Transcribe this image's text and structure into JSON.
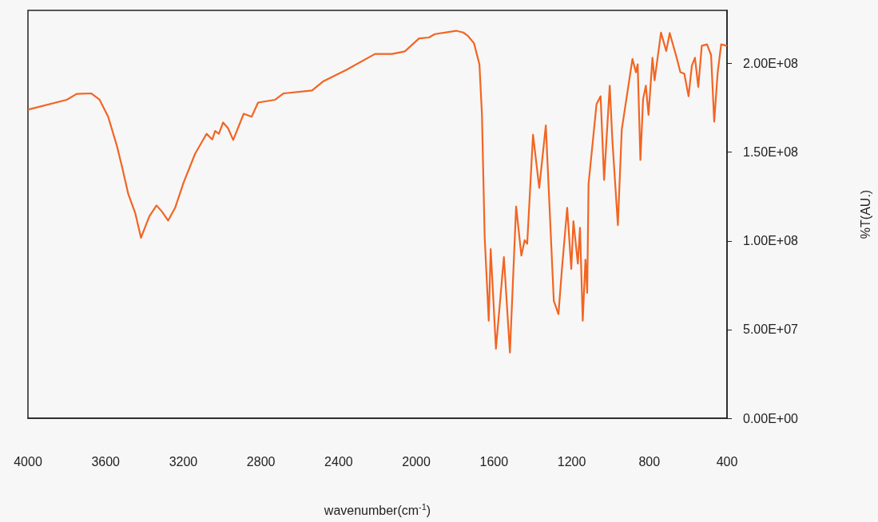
{
  "chart_data": {
    "type": "line",
    "xlabel": "wavenumber(cm$^{-1}$)",
    "ylabel": "%T(AU.)",
    "x": [
      4000,
      3800,
      3749,
      3675,
      3631,
      3587,
      3543,
      3514,
      3484,
      3447,
      3418,
      3375,
      3338,
      3309,
      3278,
      3242,
      3198,
      3139,
      3080,
      3051,
      3036,
      3017,
      2995,
      2970,
      2943,
      2889,
      2848,
      2815,
      2727,
      2683,
      2537,
      2478,
      2360,
      2213,
      2125,
      2059,
      1986,
      1935,
      1905,
      1795,
      1758,
      1736,
      1703,
      1675,
      1662,
      1648,
      1627,
      1617,
      1590,
      1549,
      1518,
      1486,
      1459,
      1442,
      1429,
      1399,
      1367,
      1333,
      1292,
      1268,
      1250,
      1223,
      1202,
      1191,
      1168,
      1157,
      1143,
      1129,
      1120,
      1113,
      1072,
      1051,
      1033,
      1004,
      990,
      962,
      942,
      887,
      869,
      860,
      846,
      832,
      818,
      804,
      784,
      773,
      740,
      713,
      695,
      661,
      640,
      620,
      598,
      581,
      565,
      548,
      530,
      503,
      482,
      466,
      448,
      430,
      400
    ],
    "series": [
      {
        "color": "#f26522",
        "values": [
          174000000.0,
          179600000.0,
          182900000.0,
          183200000.0,
          179600000.0,
          170000000.0,
          154000000.0,
          141100000.0,
          126700000.0,
          115500000.0,
          101800000.0,
          113800000.0,
          120000000.0,
          116400000.0,
          111500000.0,
          118700000.0,
          133100000.0,
          149200000.0,
          160400000.0,
          157200000.0,
          162000000.0,
          160400000.0,
          166800000.0,
          163600000.0,
          156900000.0,
          171700000.0,
          170000000.0,
          178000000.0,
          179600000.0,
          183200000.0,
          184800000.0,
          190100000.0,
          196500000.0,
          205400000.0,
          205400000.0,
          206900000.0,
          214200000.0,
          214700000.0,
          216600000.0,
          218500000.0,
          217500000.0,
          215800000.0,
          211500000.0,
          199600000.0,
          171200000.0,
          102200000.0,
          55000000.0,
          95400000.0,
          39200000.0,
          90900000.0,
          37000000.0,
          119400000.0,
          91700000.0,
          100400000.0,
          98400000.0,
          159900000.0,
          129900000.0,
          165100000.0,
          66200000.0,
          58700000.0,
          84200000.0,
          118700000.0,
          84200000.0,
          111100000.0,
          87200000.0,
          107400000.0,
          55000000.0,
          89400000.0,
          70700000.0,
          132100000.0,
          177100000.0,
          181600000.0,
          134400000.0,
          187500000.0,
          156100000.0,
          108900000.0,
          162800000.0,
          202600000.0,
          195100000.0,
          199600000.0,
          145600000.0,
          180100000.0,
          187500000.0,
          171100000.0,
          203300000.0,
          190600000.0,
          217500000.0,
          207100000.0,
          217200000.0,
          204000000.0,
          195100000.0,
          194300000.0,
          181600000.0,
          198800000.0,
          203300000.0,
          186800000.0,
          210000000.0,
          210800000.0,
          204800000.0,
          167300000.0,
          195100000.0,
          210800000.0,
          210000000.0
        ]
      }
    ],
    "xlim": [
      4000,
      400
    ],
    "xticks": [
      4000,
      3600,
      3200,
      2800,
      2400,
      2000,
      1600,
      1200,
      800,
      400
    ],
    "ylim": [
      0,
      230000000.0
    ],
    "yticks": [
      {
        "value": 0,
        "label": "0.00E+00"
      },
      {
        "value": 50000000.0,
        "label": "5.00E+07"
      },
      {
        "value": 100000000.0,
        "label": "1.00E+08"
      },
      {
        "value": 150000000.0,
        "label": "1.50E+08"
      },
      {
        "value": 200000000.0,
        "label": "2.00E+08"
      }
    ],
    "grid": false,
    "marker": "none",
    "line_style": "solid"
  }
}
